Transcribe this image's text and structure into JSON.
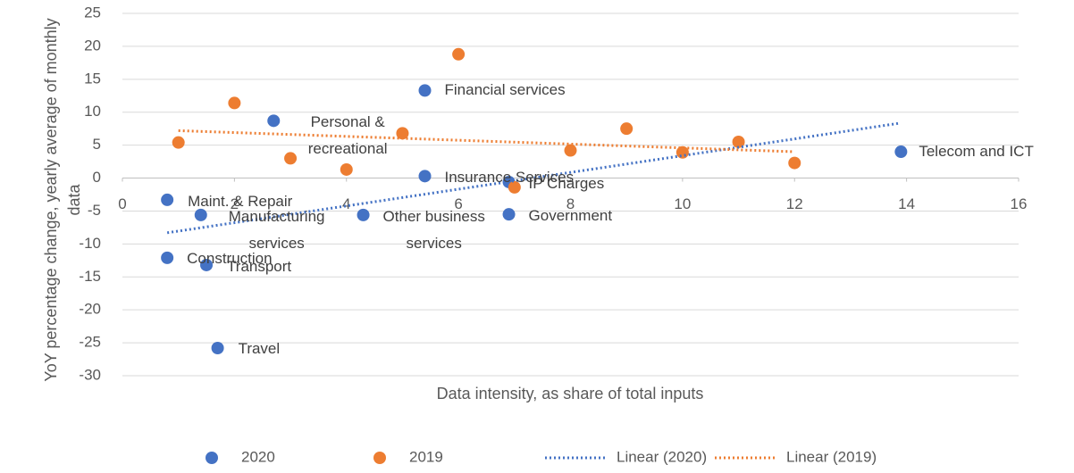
{
  "chart_data": {
    "type": "scatter",
    "x_label": "Data intensity, as share of total inputs",
    "y_label": "YoY percentage change, yearly average of monthly data",
    "xlim": [
      0,
      16
    ],
    "xticks": [
      0,
      2,
      4,
      6,
      8,
      10,
      12,
      14,
      16
    ],
    "ylim": [
      -30,
      25
    ],
    "yticks": [
      -30,
      -25,
      -20,
      -15,
      -10,
      -5,
      0,
      5,
      10,
      15,
      20,
      25
    ],
    "grid": true,
    "legend": "bottom",
    "series": [
      {
        "name": "2020",
        "color": "#4472c4",
        "x": [
          0.8,
          1.4,
          0.8,
          1.5,
          1.7,
          2.7,
          4.3,
          5.4,
          5.4,
          6.9,
          6.9,
          13.9
        ],
        "y": [
          -3.3,
          -5.6,
          -12.1,
          -13.2,
          -25.8,
          8.7,
          -5.6,
          13.3,
          0.3,
          -0.6,
          -5.5,
          4.0
        ],
        "labels": [
          "Maint. & Repair",
          "Manufacturing\nservices",
          "Construction",
          "Transport",
          "Travel",
          "Personal &\nrecreational",
          "Other business\nservices",
          "Financial services",
          "Insurance Services",
          "IP Charges",
          "Government",
          "Telecom and ICT"
        ]
      },
      {
        "name": "2019",
        "color": "#ed7d31",
        "x": [
          1,
          2,
          3,
          4,
          5,
          6,
          7,
          8,
          9,
          10,
          11,
          12
        ],
        "y": [
          5.4,
          11.4,
          3.0,
          1.3,
          6.8,
          18.8,
          -1.4,
          4.2,
          7.5,
          3.9,
          5.5,
          2.3
        ]
      },
      {
        "name": "Linear (2020)",
        "color": "#4472c4",
        "line": "dotted",
        "x": [
          0.8,
          13.85
        ],
        "y": [
          -8.3,
          8.3
        ]
      },
      {
        "name": "Linear (2019)",
        "color": "#ed7d31",
        "line": "dotted",
        "x": [
          1.0,
          12.0
        ],
        "y": [
          7.2,
          4.0
        ]
      }
    ]
  }
}
